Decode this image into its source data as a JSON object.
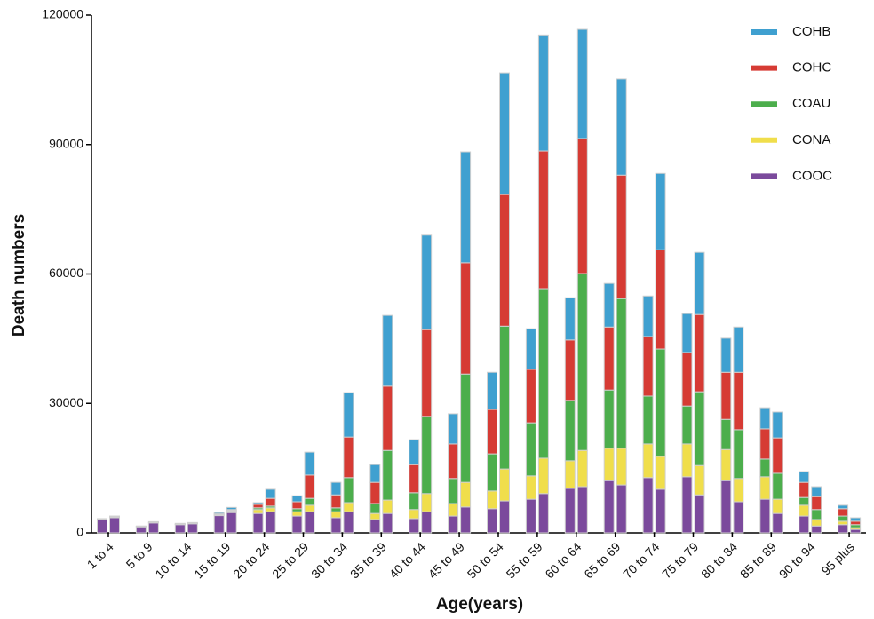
{
  "chart_data": {
    "type": "stacked_bar",
    "x_label": "Age(years)",
    "y_label": "Death numbers",
    "categories": [
      "1 to 4",
      null,
      "5 to 9",
      null,
      "10 to 14",
      null,
      "15 to 19",
      null,
      "20 to 24",
      null,
      "25 to 29",
      null,
      "30 to 34",
      null,
      "35 to 39",
      null,
      "40 to 44",
      null,
      "45 to 49",
      null,
      "50 to 54",
      null,
      "55 to 59",
      null,
      "60 to 64",
      null,
      "65 to 69",
      null,
      "70 to 74",
      null,
      "75 to 79",
      null,
      "80 to 84",
      null,
      "85 to 89",
      null,
      "90 to 94",
      null,
      "95 plus",
      null
    ],
    "series": [
      {
        "name": "COOC",
        "color": "#7b4a9c",
        "values": [
          3000,
          3500,
          1400,
          2300,
          1900,
          2100,
          4000,
          4700,
          4500,
          4900,
          3900,
          4900,
          3500,
          4900,
          3100,
          4500,
          3300,
          4900,
          3900,
          6000,
          5600,
          7400,
          7800,
          9100,
          10300,
          10700,
          12100,
          11100,
          12800,
          10100,
          13000,
          8800,
          12100,
          7200,
          7800,
          4500,
          3900,
          1600,
          1900,
          800
        ]
      },
      {
        "name": "CONA",
        "color": "#f0de4b",
        "values": [
          100,
          100,
          50,
          80,
          80,
          80,
          200,
          300,
          900,
          900,
          1000,
          1500,
          1400,
          2100,
          1400,
          3100,
          2100,
          4200,
          2900,
          5700,
          4100,
          7400,
          5400,
          8200,
          6400,
          8400,
          7500,
          8500,
          7800,
          7600,
          7600,
          6800,
          7200,
          5400,
          5200,
          3300,
          2500,
          1500,
          800,
          400
        ]
      },
      {
        "name": "COAU",
        "color": "#4cae4c",
        "values": [
          50,
          50,
          30,
          40,
          40,
          40,
          100,
          200,
          400,
          400,
          700,
          1600,
          900,
          5800,
          2300,
          11500,
          3900,
          17900,
          5800,
          25100,
          8600,
          33100,
          12300,
          39300,
          14000,
          41000,
          13500,
          34700,
          11100,
          24900,
          8800,
          17100,
          7000,
          11300,
          4100,
          6000,
          1800,
          2300,
          1200,
          700
        ]
      },
      {
        "name": "COHC",
        "color": "#d63b34",
        "values": [
          50,
          50,
          30,
          40,
          40,
          40,
          100,
          200,
          800,
          1800,
          1600,
          5400,
          3000,
          9400,
          4900,
          14900,
          6500,
          20100,
          8000,
          25800,
          10300,
          30500,
          12400,
          31900,
          14000,
          31300,
          14600,
          28600,
          13800,
          23000,
          12400,
          17900,
          10900,
          13300,
          7000,
          8200,
          3500,
          3000,
          1700,
          800
        ]
      },
      {
        "name": "COHB",
        "color": "#3fa0d0",
        "values": [
          100,
          200,
          90,
          140,
          140,
          140,
          300,
          500,
          400,
          2100,
          1400,
          5300,
          2900,
          10300,
          4100,
          16400,
          5800,
          21900,
          7000,
          25700,
          8600,
          28200,
          9400,
          26900,
          9800,
          25300,
          10100,
          22300,
          9400,
          17700,
          9000,
          14400,
          7900,
          10500,
          4900,
          6000,
          2500,
          2300,
          800,
          800
        ]
      }
    ],
    "ylim": [
      0,
      120000
    ],
    "yticks": [
      0,
      30000,
      60000,
      90000,
      120000
    ],
    "grid": false,
    "legend": "upper right"
  }
}
